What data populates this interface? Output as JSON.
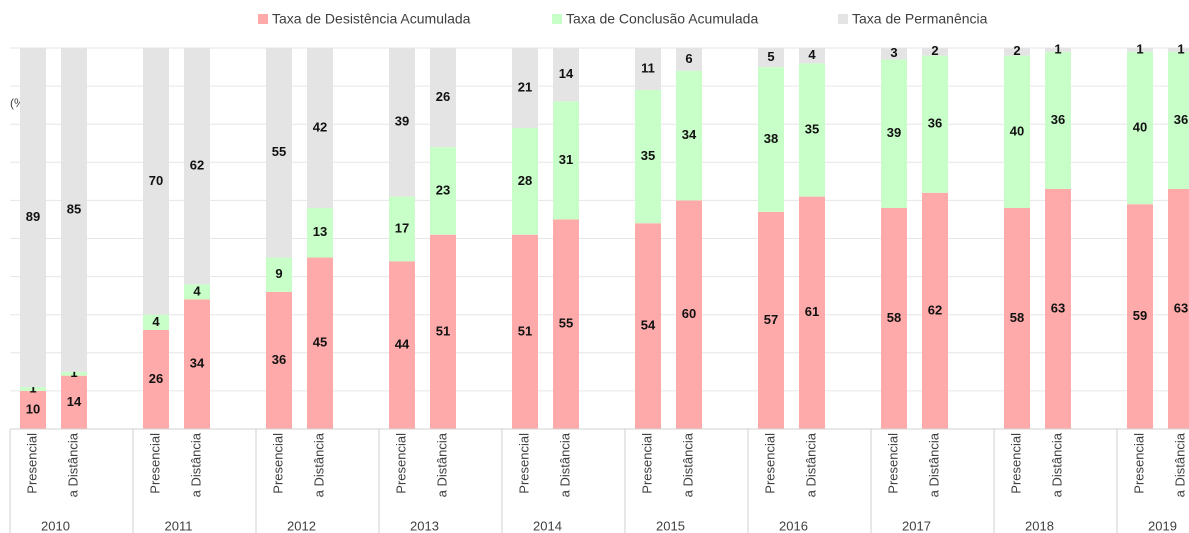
{
  "chart_data": {
    "type": "stacked_bar",
    "y_label": "(%)",
    "categories": [
      "Presencial",
      "a Distância",
      "Presencial",
      "a Distância",
      "Presencial",
      "a Distância",
      "Presencial",
      "a Distância",
      "Presencial",
      "a Distância",
      "Presencial",
      "a Distância",
      "Presencial",
      "a Distância",
      "Presencial",
      "a Distância",
      "Presencial",
      "a Distância",
      "Presencial",
      "a Distância"
    ],
    "groups": [
      "2010",
      "2011",
      "2012",
      "2013",
      "2014",
      "2015",
      "2016",
      "2017",
      "2018",
      "2019"
    ],
    "series": [
      {
        "name": "Taxa de Desistência Acumulada",
        "color": "#ffaaaa",
        "values": [
          10,
          14,
          26,
          34,
          36,
          45,
          44,
          51,
          51,
          55,
          54,
          60,
          57,
          61,
          58,
          62,
          58,
          63,
          59,
          63
        ]
      },
      {
        "name": "Taxa de Conclusão Acumulada",
        "color": "#c8ffc8",
        "values": [
          1,
          1,
          4,
          4,
          9,
          13,
          17,
          23,
          28,
          31,
          35,
          34,
          38,
          35,
          39,
          36,
          40,
          36,
          40,
          36
        ]
      },
      {
        "name": "Taxa de Permanência",
        "color": "#e4e4e4",
        "values": [
          89,
          85,
          70,
          62,
          55,
          42,
          39,
          26,
          21,
          14,
          11,
          6,
          5,
          4,
          3,
          2,
          2,
          1,
          1,
          1
        ]
      }
    ],
    "ylim": [
      0,
      100
    ],
    "yticks": [
      0,
      10,
      20,
      30,
      40,
      50,
      60,
      70,
      80,
      90,
      100
    ],
    "grid": true,
    "legend": "top"
  }
}
